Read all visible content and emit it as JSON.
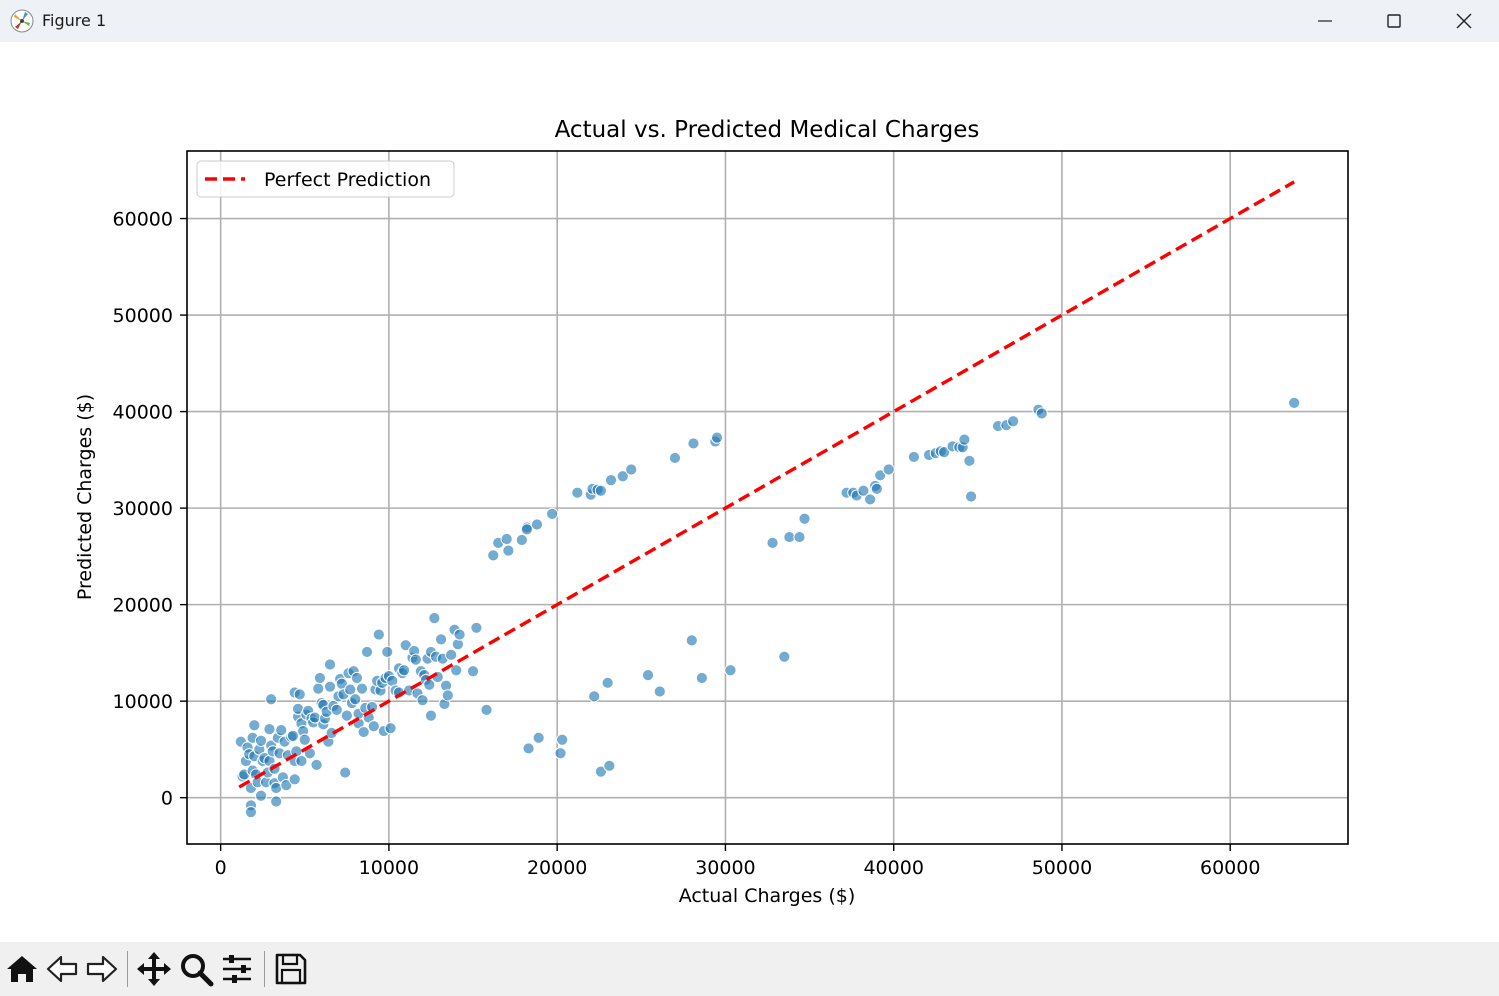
{
  "window": {
    "title": "Figure 1",
    "icon": "matplotlib-logo-icon"
  },
  "toolbar": {
    "buttons": [
      {
        "name": "home-button",
        "icon": "home-icon"
      },
      {
        "name": "back-button",
        "icon": "back-arrow-icon"
      },
      {
        "name": "forward-button",
        "icon": "forward-arrow-icon"
      },
      {
        "name": "pan-button",
        "icon": "move-icon"
      },
      {
        "name": "zoom-button",
        "icon": "magnifier-icon"
      },
      {
        "name": "configure-subplots-button",
        "icon": "sliders-icon"
      },
      {
        "name": "save-button",
        "icon": "floppy-disk-icon"
      }
    ]
  },
  "colors": {
    "points": "#1f77b4",
    "reference_line": "#ff0000",
    "grid": "#b0b0b0"
  },
  "chart_data": {
    "type": "scatter",
    "title": "Actual vs. Predicted Medical Charges",
    "xlabel": "Actual Charges ($)",
    "ylabel": "Predicted Charges ($)",
    "xlim": [
      -2000,
      67000
    ],
    "ylim": [
      -4800,
      67000
    ],
    "xticks": [
      0,
      10000,
      20000,
      30000,
      40000,
      50000,
      60000
    ],
    "yticks": [
      0,
      10000,
      20000,
      30000,
      40000,
      50000,
      60000
    ],
    "xtick_labels": [
      "0",
      "10000",
      "20000",
      "30000",
      "40000",
      "50000",
      "60000"
    ],
    "ytick_labels": [
      "0",
      "10000",
      "20000",
      "30000",
      "40000",
      "50000",
      "60000"
    ],
    "grid": true,
    "legend": {
      "position": "top-left",
      "entries": [
        "Perfect Prediction"
      ]
    },
    "reference_line": {
      "name": "Perfect Prediction",
      "style": "dashed",
      "color": "#ff0000",
      "x": [
        1100,
        63800
      ],
      "y": [
        1100,
        63800
      ]
    },
    "series": [
      {
        "color": "#1f77b4",
        "points": [
          [
            1200,
            5800
          ],
          [
            1300,
            2200
          ],
          [
            1400,
            2400
          ],
          [
            1500,
            3800
          ],
          [
            1600,
            5200
          ],
          [
            1700,
            4500
          ],
          [
            1800,
            1000
          ],
          [
            1800,
            -800
          ],
          [
            1800,
            -1500
          ],
          [
            1900,
            2800
          ],
          [
            1900,
            6200
          ],
          [
            2000,
            7500
          ],
          [
            2000,
            4300
          ],
          [
            2100,
            2400
          ],
          [
            2200,
            1600
          ],
          [
            2300,
            5000
          ],
          [
            2400,
            200
          ],
          [
            2400,
            5900
          ],
          [
            2500,
            3800
          ],
          [
            2600,
            4100
          ],
          [
            2700,
            1600
          ],
          [
            2800,
            2600
          ],
          [
            2900,
            7100
          ],
          [
            2900,
            3800
          ],
          [
            3000,
            10200
          ],
          [
            3000,
            5400
          ],
          [
            3100,
            4800
          ],
          [
            3200,
            1500
          ],
          [
            3200,
            3000
          ],
          [
            3300,
            1000
          ],
          [
            3300,
            -400
          ],
          [
            3400,
            6200
          ],
          [
            3500,
            4600
          ],
          [
            3600,
            7000
          ],
          [
            3700,
            2100
          ],
          [
            3800,
            5800
          ],
          [
            3900,
            1300
          ],
          [
            4000,
            4400
          ],
          [
            4200,
            6300
          ],
          [
            4300,
            6400
          ],
          [
            4400,
            10900
          ],
          [
            4400,
            3800
          ],
          [
            4400,
            1900
          ],
          [
            4500,
            4800
          ],
          [
            4600,
            8400
          ],
          [
            4600,
            9200
          ],
          [
            4700,
            10700
          ],
          [
            4800,
            7700
          ],
          [
            4800,
            3800
          ],
          [
            4900,
            6900
          ],
          [
            5000,
            6000
          ],
          [
            5100,
            8600
          ],
          [
            5200,
            9000
          ],
          [
            5300,
            4600
          ],
          [
            5400,
            8200
          ],
          [
            5500,
            7800
          ],
          [
            5600,
            8300
          ],
          [
            5700,
            3400
          ],
          [
            5800,
            11300
          ],
          [
            5900,
            12400
          ],
          [
            6000,
            9800
          ],
          [
            6100,
            9600
          ],
          [
            6100,
            7600
          ],
          [
            6200,
            8200
          ],
          [
            6300,
            8900
          ],
          [
            6400,
            5800
          ],
          [
            6500,
            13800
          ],
          [
            6500,
            11500
          ],
          [
            6600,
            6700
          ],
          [
            6700,
            9500
          ],
          [
            6900,
            9100
          ],
          [
            7000,
            10500
          ],
          [
            7100,
            12300
          ],
          [
            7200,
            11800
          ],
          [
            7300,
            10700
          ],
          [
            7400,
            2600
          ],
          [
            7500,
            8500
          ],
          [
            7600,
            12900
          ],
          [
            7700,
            11200
          ],
          [
            7800,
            9800
          ],
          [
            7900,
            13100
          ],
          [
            8000,
            10200
          ],
          [
            8100,
            12400
          ],
          [
            8200,
            7700
          ],
          [
            8200,
            8700
          ],
          [
            8400,
            11300
          ],
          [
            8500,
            6800
          ],
          [
            8600,
            9300
          ],
          [
            8700,
            15100
          ],
          [
            8800,
            8300
          ],
          [
            9000,
            9400
          ],
          [
            9100,
            7400
          ],
          [
            9200,
            11200
          ],
          [
            9300,
            12100
          ],
          [
            9400,
            16900
          ],
          [
            9500,
            11100
          ],
          [
            9600,
            11900
          ],
          [
            9700,
            6900
          ],
          [
            9800,
            12400
          ],
          [
            9900,
            15100
          ],
          [
            10000,
            12600
          ],
          [
            10100,
            7200
          ],
          [
            10200,
            12100
          ],
          [
            10400,
            11100
          ],
          [
            10600,
            10900
          ],
          [
            10600,
            13400
          ],
          [
            10800,
            12900
          ],
          [
            10900,
            13200
          ],
          [
            11000,
            15800
          ],
          [
            11200,
            11100
          ],
          [
            11400,
            14500
          ],
          [
            11500,
            15200
          ],
          [
            11600,
            14300
          ],
          [
            11700,
            10800
          ],
          [
            11900,
            13100
          ],
          [
            12000,
            10100
          ],
          [
            12100,
            12700
          ],
          [
            12200,
            12200
          ],
          [
            12300,
            14400
          ],
          [
            12400,
            11700
          ],
          [
            12500,
            15100
          ],
          [
            12500,
            8500
          ],
          [
            12700,
            18600
          ],
          [
            12800,
            14600
          ],
          [
            12900,
            12500
          ],
          [
            13100,
            16400
          ],
          [
            13200,
            14400
          ],
          [
            13300,
            9700
          ],
          [
            13400,
            11600
          ],
          [
            13500,
            10600
          ],
          [
            13700,
            14800
          ],
          [
            13900,
            17400
          ],
          [
            14000,
            13200
          ],
          [
            14100,
            15900
          ],
          [
            14200,
            16900
          ],
          [
            15000,
            13100
          ],
          [
            15200,
            17600
          ],
          [
            15800,
            9100
          ],
          [
            16200,
            25100
          ],
          [
            16500,
            26400
          ],
          [
            17000,
            26800
          ],
          [
            17100,
            25600
          ],
          [
            17900,
            26700
          ],
          [
            18200,
            28000
          ],
          [
            18200,
            27800
          ],
          [
            18300,
            5100
          ],
          [
            18800,
            28300
          ],
          [
            18900,
            6200
          ],
          [
            19700,
            29400
          ],
          [
            20200,
            4600
          ],
          [
            20300,
            6000
          ],
          [
            21200,
            31600
          ],
          [
            22000,
            31400
          ],
          [
            22100,
            32000
          ],
          [
            22200,
            10500
          ],
          [
            22400,
            31900
          ],
          [
            22600,
            31800
          ],
          [
            22600,
            2700
          ],
          [
            23000,
            11900
          ],
          [
            23100,
            3300
          ],
          [
            23200,
            32900
          ],
          [
            23900,
            33300
          ],
          [
            24400,
            34000
          ],
          [
            25400,
            12700
          ],
          [
            26100,
            11000
          ],
          [
            27000,
            35200
          ],
          [
            28000,
            16300
          ],
          [
            28100,
            36700
          ],
          [
            28600,
            12400
          ],
          [
            29400,
            36900
          ],
          [
            29500,
            37300
          ],
          [
            30300,
            13200
          ],
          [
            32800,
            26400
          ],
          [
            33500,
            14600
          ],
          [
            33800,
            27000
          ],
          [
            34400,
            27000
          ],
          [
            34700,
            28900
          ],
          [
            37200,
            31600
          ],
          [
            37600,
            31600
          ],
          [
            37800,
            31300
          ],
          [
            38200,
            31800
          ],
          [
            38600,
            30900
          ],
          [
            38900,
            32300
          ],
          [
            39000,
            32000
          ],
          [
            39200,
            33400
          ],
          [
            39700,
            34000
          ],
          [
            41200,
            35300
          ],
          [
            42100,
            35500
          ],
          [
            42500,
            35700
          ],
          [
            42800,
            35900
          ],
          [
            43000,
            35800
          ],
          [
            43500,
            36400
          ],
          [
            43900,
            36300
          ],
          [
            44100,
            36300
          ],
          [
            44200,
            37100
          ],
          [
            44500,
            34900
          ],
          [
            44600,
            31200
          ],
          [
            46200,
            38500
          ],
          [
            46700,
            38600
          ],
          [
            47100,
            39000
          ],
          [
            48600,
            40200
          ],
          [
            48800,
            39800
          ],
          [
            63800,
            40900
          ]
        ]
      }
    ]
  }
}
